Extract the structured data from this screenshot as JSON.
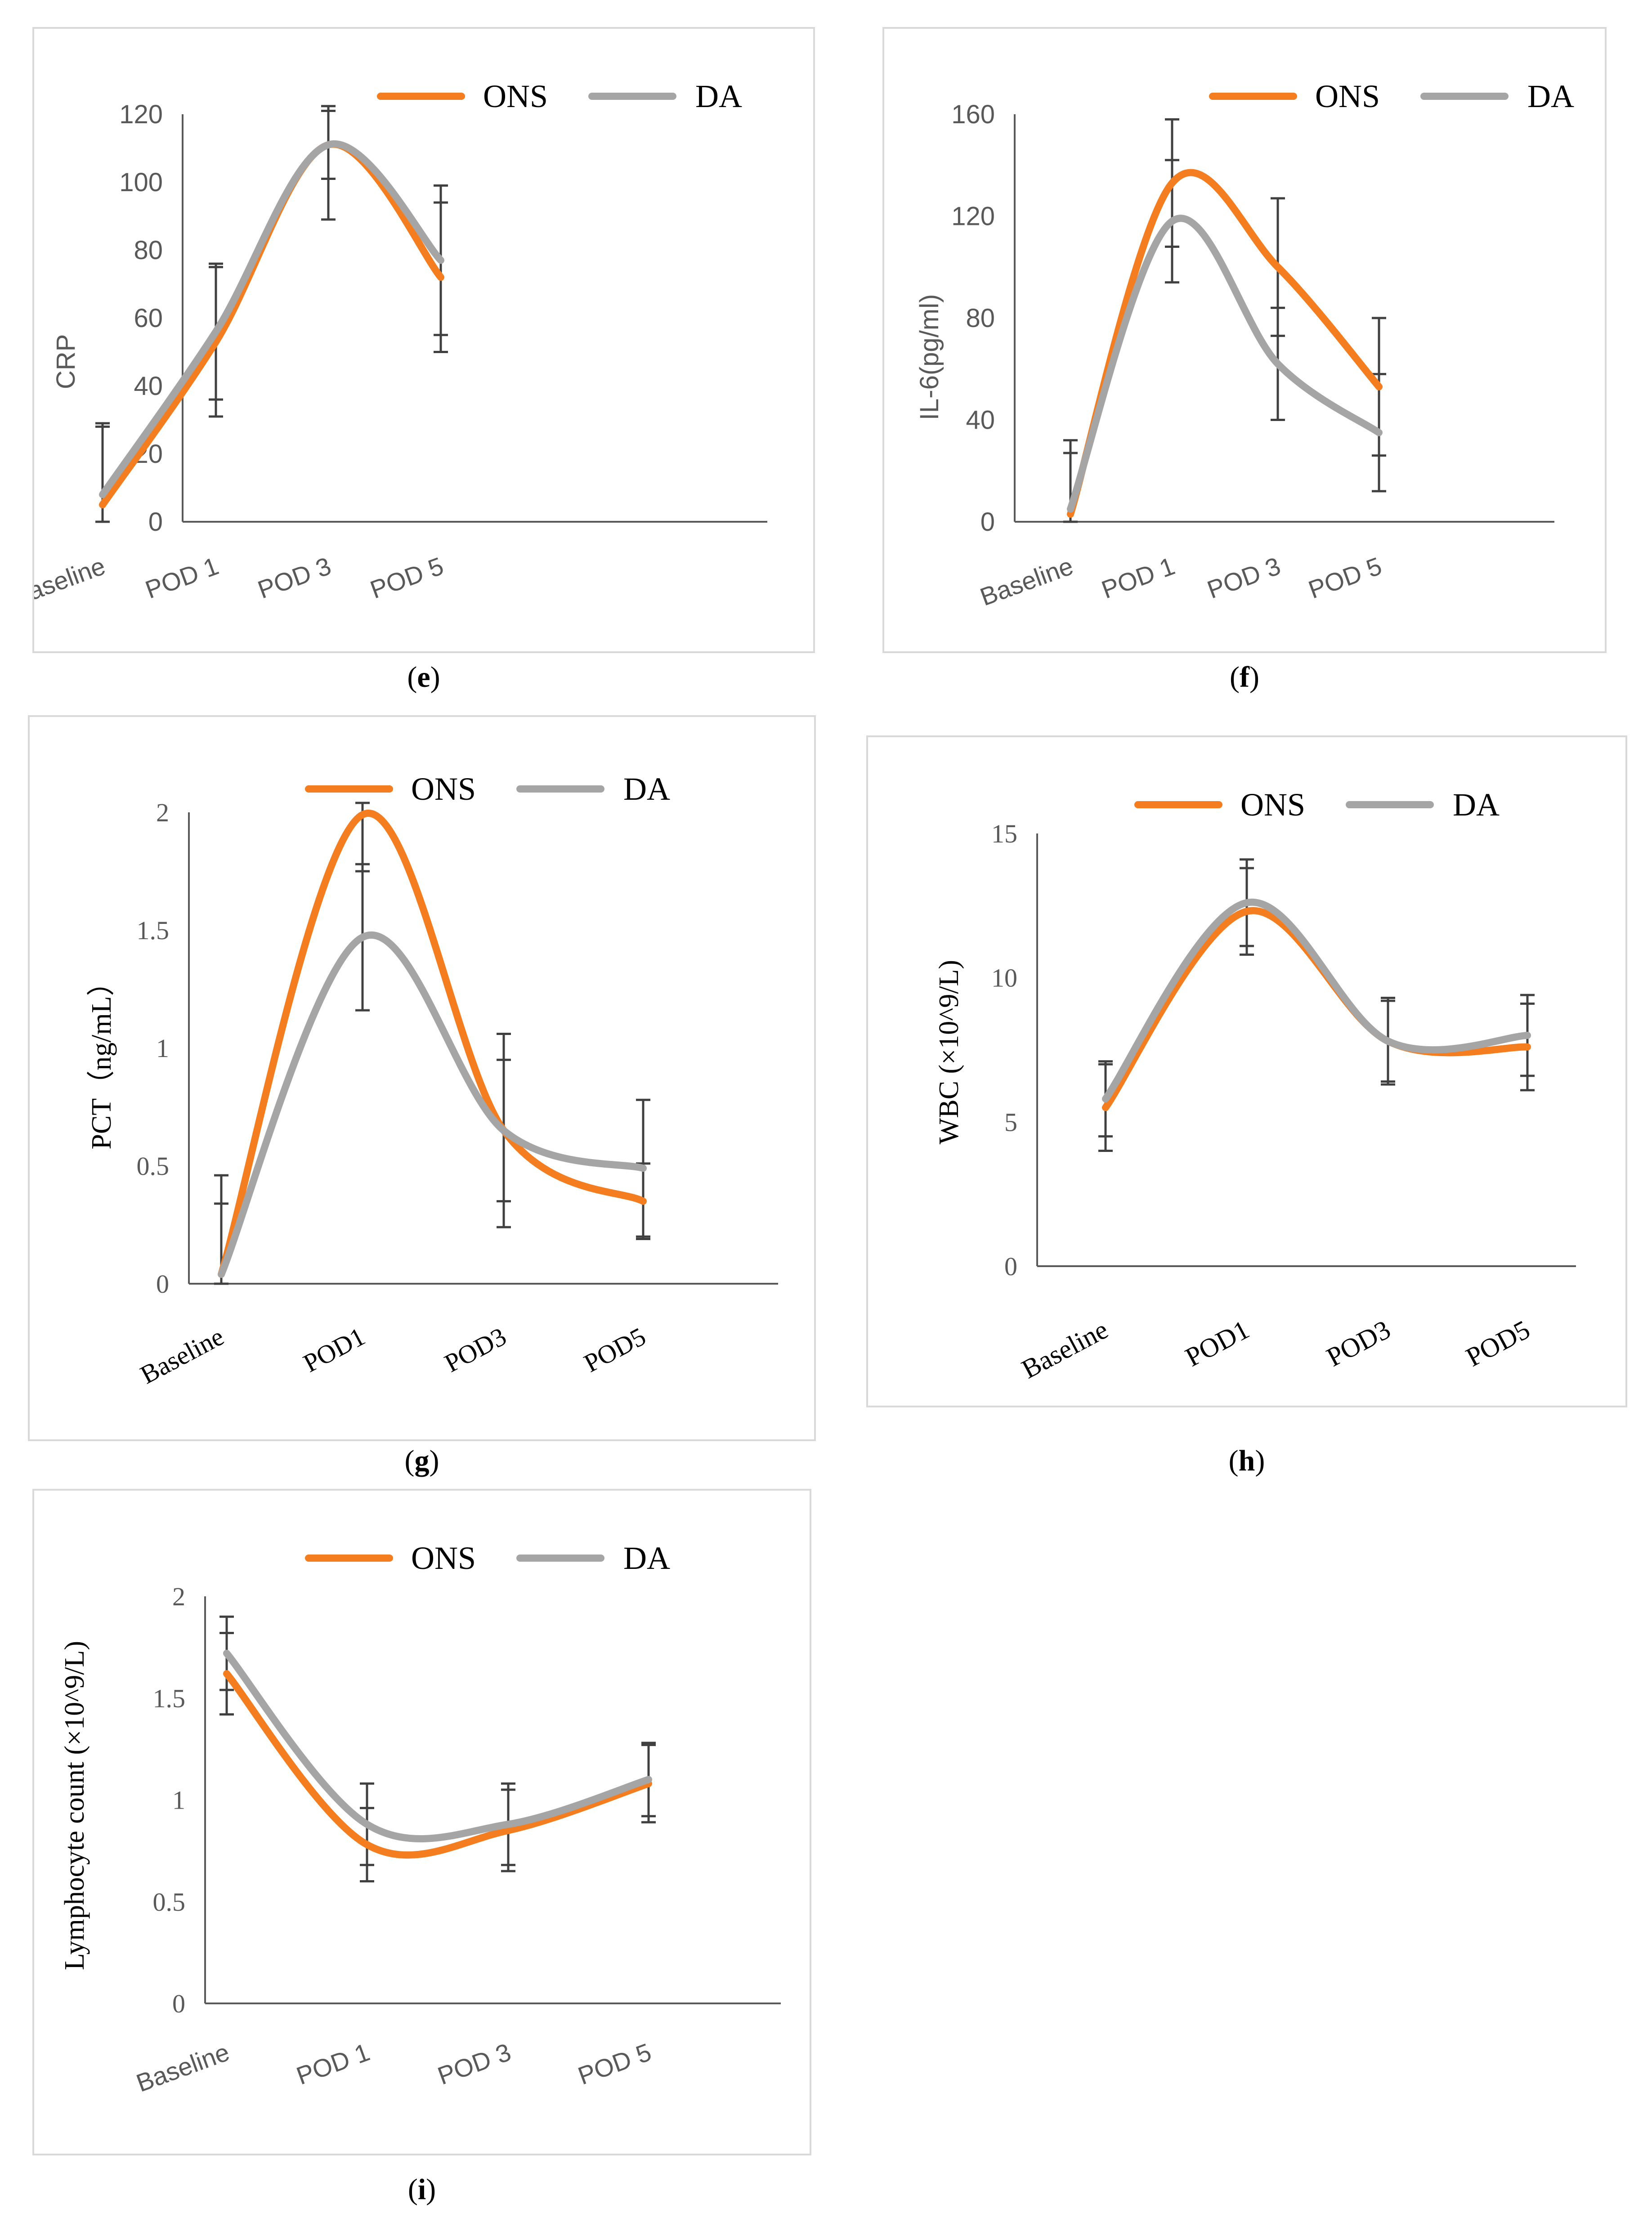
{
  "colors": {
    "ons": "#f47d20",
    "da": "#a5a5a5",
    "axis": "#595959",
    "errbar": "#404040",
    "border": "#d9d9d9"
  },
  "chart_data": [
    {
      "id": "e",
      "type": "line",
      "caption": "e",
      "font": "sans",
      "ylabel": "CRP",
      "ylim": [
        0,
        120
      ],
      "yticks": [
        "0",
        "20",
        "40",
        "60",
        "80",
        "100",
        "120"
      ],
      "categories": [
        "Baseline",
        "POD 1",
        "POD 3",
        "POD 5"
      ],
      "legend": [
        "ONS",
        "DA"
      ],
      "series": [
        {
          "name": "ONS",
          "values": [
            5,
            53,
            111,
            72
          ],
          "err": [
            24,
            22,
            22,
            22
          ]
        },
        {
          "name": "DA",
          "values": [
            8,
            56,
            111,
            77
          ],
          "err": [
            20,
            20,
            10,
            22
          ]
        }
      ]
    },
    {
      "id": "f",
      "type": "line",
      "caption": "f",
      "font": "sans",
      "ylabel": "IL-6(pg/ml)",
      "ylim": [
        0,
        160
      ],
      "yticks": [
        "0",
        "40",
        "80",
        "120",
        "160"
      ],
      "categories": [
        "Baseline",
        "POD 1",
        "POD 3",
        "POD 5"
      ],
      "legend": [
        "ONS",
        "DA"
      ],
      "series": [
        {
          "name": "ONS",
          "values": [
            3,
            133,
            100,
            53
          ],
          "err": [
            29,
            25,
            27,
            27
          ]
        },
        {
          "name": "DA",
          "values": [
            5,
            118,
            62,
            35
          ],
          "err": [
            22,
            24,
            22,
            23
          ]
        }
      ]
    },
    {
      "id": "g",
      "type": "line",
      "caption": "g",
      "font": "serif",
      "ylabel": "PCT（ng/mL）",
      "ylim": [
        0,
        2
      ],
      "yticks": [
        "0",
        "0.5",
        "1",
        "1.5",
        "2"
      ],
      "categories": [
        "Baseline",
        "POD1",
        "POD3",
        "POD5"
      ],
      "legend": [
        "ONS",
        "DA"
      ],
      "series": [
        {
          "name": "ONS",
          "values": [
            0.04,
            1.99,
            0.65,
            0.35
          ],
          "err": [
            0.3,
            0.24,
            0.3,
            0.16
          ]
        },
        {
          "name": "DA",
          "values": [
            0.04,
            1.47,
            0.65,
            0.49
          ],
          "err": [
            0.42,
            0.31,
            0.41,
            0.29
          ]
        }
      ]
    },
    {
      "id": "h",
      "type": "line",
      "caption": "h",
      "font": "serif",
      "ylabel": "WBC (×10^9/L)",
      "ylim": [
        0,
        15
      ],
      "yticks": [
        "0",
        "5",
        "10",
        "15"
      ],
      "categories": [
        "Baseline",
        "POD1",
        "POD3",
        "POD5"
      ],
      "legend": [
        "ONS",
        "DA"
      ],
      "series": [
        {
          "name": "ONS",
          "values": [
            5.5,
            12.3,
            7.8,
            7.6
          ],
          "err": [
            1.5,
            1.5,
            1.5,
            1.5
          ]
        },
        {
          "name": "DA",
          "values": [
            5.8,
            12.6,
            7.8,
            8.0
          ],
          "err": [
            1.3,
            1.5,
            1.4,
            1.4
          ]
        }
      ]
    },
    {
      "id": "i",
      "type": "line",
      "caption": "i",
      "font": "serif",
      "xfont": "sans",
      "ylabel": "Lymphocyte count (×10^9/L)",
      "ylim": [
        0,
        2
      ],
      "yticks": [
        "0",
        "0.5",
        "1",
        "1.5",
        "2"
      ],
      "categories": [
        "Baseline",
        "POD 1",
        "POD 3",
        "POD 5"
      ],
      "legend": [
        "ONS",
        "DA"
      ],
      "series": [
        {
          "name": "ONS",
          "values": [
            1.62,
            0.78,
            0.85,
            1.08
          ],
          "err": [
            0.2,
            0.18,
            0.2,
            0.19
          ]
        },
        {
          "name": "DA",
          "values": [
            1.72,
            0.88,
            0.88,
            1.1
          ],
          "err": [
            0.18,
            0.2,
            0.2,
            0.18
          ]
        }
      ]
    }
  ]
}
